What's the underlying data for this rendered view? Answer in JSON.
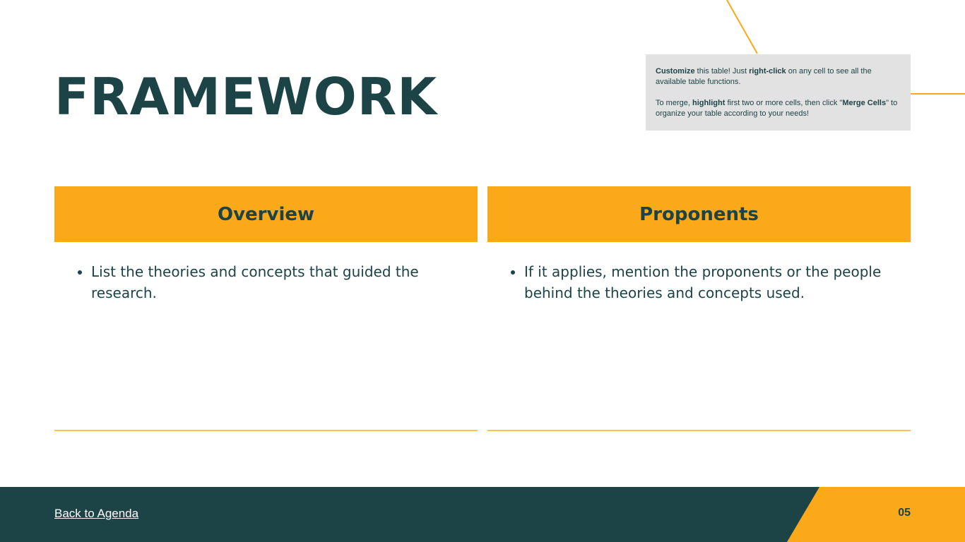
{
  "slide": {
    "title": "FRAMEWORK",
    "page_number": "05",
    "back_link": "Back to Agenda"
  },
  "tip": {
    "line1": [
      {
        "text": "Customize",
        "bold": true
      },
      {
        "text": " this table! Just ",
        "bold": false
      },
      {
        "text": "right-click",
        "bold": true
      },
      {
        "text": " on any cell to see all the available table functions.",
        "bold": false
      }
    ],
    "line2": [
      {
        "text": "To merge, ",
        "bold": false
      },
      {
        "text": "highlight",
        "bold": true
      },
      {
        "text": " first two or more cells, then click \"",
        "bold": false
      },
      {
        "text": "Merge Cells",
        "bold": true
      },
      {
        "text": "\" to organize your table according to your needs!",
        "bold": false
      }
    ]
  },
  "table": {
    "columns": [
      {
        "header": "Overview",
        "bullets": [
          "List the theories and concepts that guided the research."
        ]
      },
      {
        "header": "Proponents",
        "bullets": [
          "If it applies, mention the proponents or the people behind the theories and concepts used."
        ]
      }
    ]
  },
  "colors": {
    "primary": "#1c4447",
    "accent": "#fba819",
    "tip_background": "#e2e2e2"
  }
}
